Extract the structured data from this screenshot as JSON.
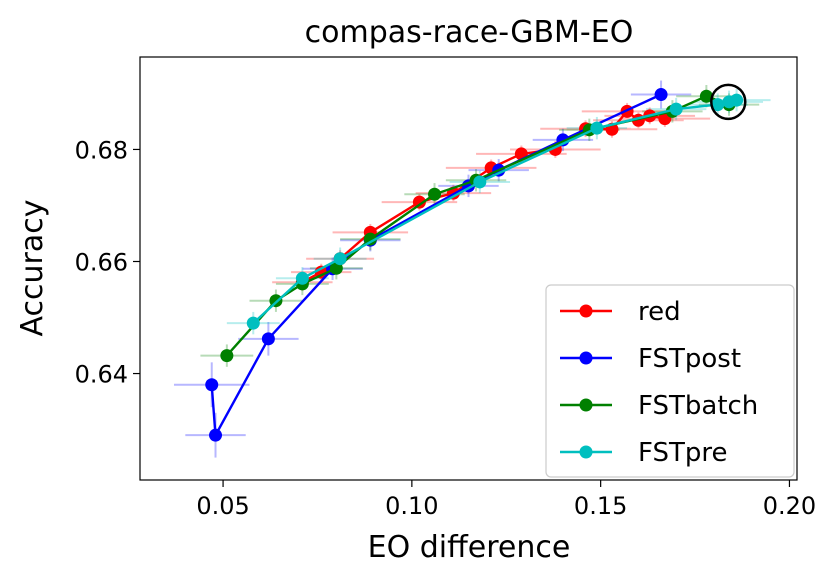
{
  "chart_data": {
    "type": "line",
    "title": "compas-race-GBM-EO",
    "xlabel": "EO difference",
    "ylabel": "Accuracy",
    "xlim": [
      0.028,
      0.202
    ],
    "ylim": [
      0.621,
      0.6965
    ],
    "xticks": [
      0.05,
      0.1,
      0.15,
      0.2
    ],
    "xtick_labels": [
      "0.05",
      "0.10",
      "0.15",
      "0.20"
    ],
    "yticks": [
      0.64,
      0.66,
      0.68
    ],
    "ytick_labels": [
      "0.64",
      "0.66",
      "0.68"
    ],
    "legend_position": "lower-right",
    "highlight": {
      "x": 0.1838,
      "y": 0.6885,
      "label": "circled point"
    },
    "series": [
      {
        "name": "red",
        "color": "#ff0000",
        "points": [
          {
            "x": 0.071,
            "y": 0.6563,
            "xerr": 0.008,
            "yerr": 0.0015
          },
          {
            "x": 0.076,
            "y": 0.6581,
            "xerr": 0.008,
            "yerr": 0.0015
          },
          {
            "x": 0.081,
            "y": 0.6605,
            "xerr": 0.009,
            "yerr": 0.0015
          },
          {
            "x": 0.089,
            "y": 0.6652,
            "xerr": 0.01,
            "yerr": 0.0015
          },
          {
            "x": 0.102,
            "y": 0.6706,
            "xerr": 0.01,
            "yerr": 0.0015
          },
          {
            "x": 0.111,
            "y": 0.6722,
            "xerr": 0.01,
            "yerr": 0.0015
          },
          {
            "x": 0.121,
            "y": 0.6767,
            "xerr": 0.012,
            "yerr": 0.0015
          },
          {
            "x": 0.129,
            "y": 0.6792,
            "xerr": 0.012,
            "yerr": 0.0015
          },
          {
            "x": 0.138,
            "y": 0.68,
            "xerr": 0.012,
            "yerr": 0.0015
          },
          {
            "x": 0.146,
            "y": 0.6837,
            "xerr": 0.012,
            "yerr": 0.0015
          },
          {
            "x": 0.153,
            "y": 0.6836,
            "xerr": 0.012,
            "yerr": 0.0015
          },
          {
            "x": 0.157,
            "y": 0.6868,
            "xerr": 0.012,
            "yerr": 0.0015
          },
          {
            "x": 0.16,
            "y": 0.6852,
            "xerr": 0.012,
            "yerr": 0.0015
          },
          {
            "x": 0.163,
            "y": 0.686,
            "xerr": 0.012,
            "yerr": 0.0015
          },
          {
            "x": 0.167,
            "y": 0.6855,
            "xerr": 0.012,
            "yerr": 0.0015
          }
        ]
      },
      {
        "name": "FSTpost",
        "color": "#0000ff",
        "points": [
          {
            "x": 0.048,
            "y": 0.629,
            "xerr": 0.008,
            "yerr": 0.004
          },
          {
            "x": 0.047,
            "y": 0.638,
            "xerr": 0.01,
            "yerr": 0.004
          },
          {
            "x": 0.062,
            "y": 0.6462,
            "xerr": 0.008,
            "yerr": 0.003
          },
          {
            "x": 0.079,
            "y": 0.6587,
            "xerr": 0.008,
            "yerr": 0.002
          },
          {
            "x": 0.089,
            "y": 0.6638,
            "xerr": 0.008,
            "yerr": 0.002
          },
          {
            "x": 0.115,
            "y": 0.6735,
            "xerr": 0.008,
            "yerr": 0.002
          },
          {
            "x": 0.123,
            "y": 0.6763,
            "xerr": 0.008,
            "yerr": 0.002
          },
          {
            "x": 0.14,
            "y": 0.6817,
            "xerr": 0.008,
            "yerr": 0.002
          },
          {
            "x": 0.166,
            "y": 0.6898,
            "xerr": 0.008,
            "yerr": 0.0025
          }
        ]
      },
      {
        "name": "FSTbatch",
        "color": "#008000",
        "points": [
          {
            "x": 0.051,
            "y": 0.6432,
            "xerr": 0.007,
            "yerr": 0.002
          },
          {
            "x": 0.064,
            "y": 0.653,
            "xerr": 0.007,
            "yerr": 0.002
          },
          {
            "x": 0.071,
            "y": 0.656,
            "xerr": 0.007,
            "yerr": 0.002
          },
          {
            "x": 0.08,
            "y": 0.6588,
            "xerr": 0.007,
            "yerr": 0.002
          },
          {
            "x": 0.089,
            "y": 0.664,
            "xerr": 0.008,
            "yerr": 0.002
          },
          {
            "x": 0.106,
            "y": 0.672,
            "xerr": 0.008,
            "yerr": 0.002
          },
          {
            "x": 0.117,
            "y": 0.6745,
            "xerr": 0.008,
            "yerr": 0.002
          },
          {
            "x": 0.147,
            "y": 0.6835,
            "xerr": 0.008,
            "yerr": 0.002
          },
          {
            "x": 0.169,
            "y": 0.6868,
            "xerr": 0.008,
            "yerr": 0.002
          },
          {
            "x": 0.178,
            "y": 0.6895,
            "xerr": 0.008,
            "yerr": 0.002
          },
          {
            "x": 0.184,
            "y": 0.688,
            "xerr": 0.008,
            "yerr": 0.002
          }
        ]
      },
      {
        "name": "FSTpre",
        "color": "#00bfbf",
        "points": [
          {
            "x": 0.058,
            "y": 0.649,
            "xerr": 0.007,
            "yerr": 0.002
          },
          {
            "x": 0.071,
            "y": 0.657,
            "xerr": 0.007,
            "yerr": 0.002
          },
          {
            "x": 0.081,
            "y": 0.6605,
            "xerr": 0.007,
            "yerr": 0.002
          },
          {
            "x": 0.118,
            "y": 0.6742,
            "xerr": 0.008,
            "yerr": 0.002
          },
          {
            "x": 0.149,
            "y": 0.6838,
            "xerr": 0.008,
            "yerr": 0.002
          },
          {
            "x": 0.17,
            "y": 0.6872,
            "xerr": 0.008,
            "yerr": 0.002
          },
          {
            "x": 0.181,
            "y": 0.688,
            "xerr": 0.008,
            "yerr": 0.002
          },
          {
            "x": 0.184,
            "y": 0.6885,
            "xerr": 0.009,
            "yerr": 0.002
          },
          {
            "x": 0.186,
            "y": 0.6888,
            "xerr": 0.009,
            "yerr": 0.002
          }
        ]
      }
    ]
  }
}
